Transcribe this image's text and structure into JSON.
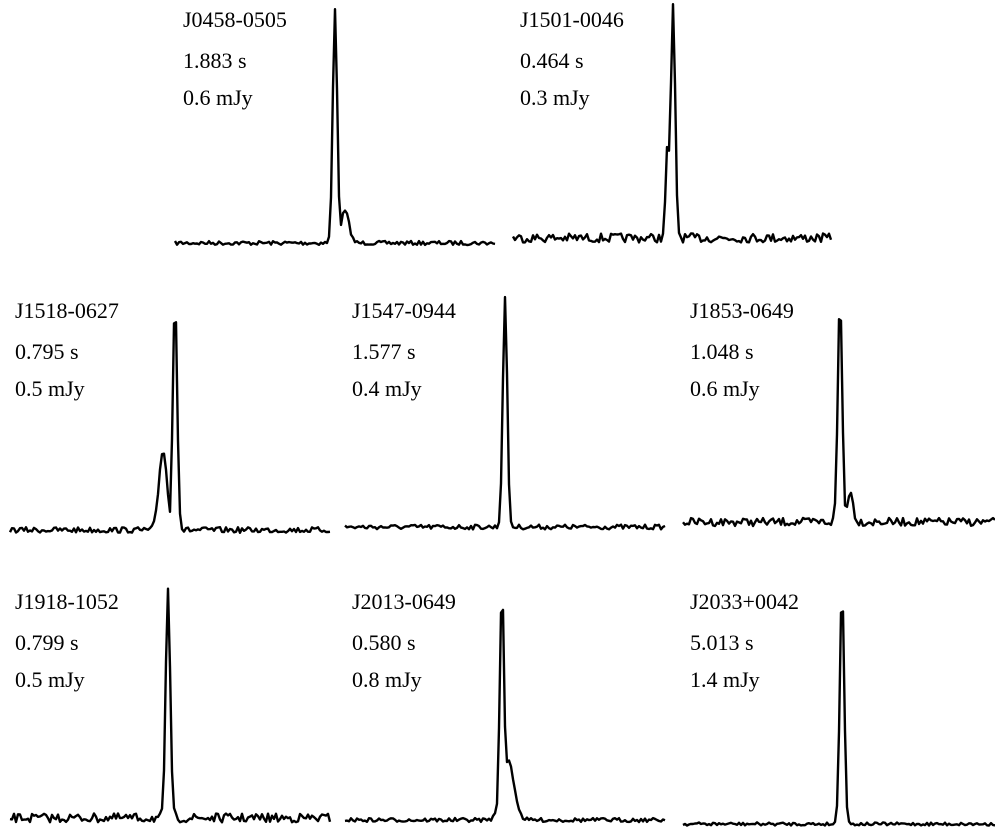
{
  "panels": [
    {
      "name": "J0458-0505",
      "period": "1.883 s",
      "flux": "0.6 mJy"
    },
    {
      "name": "J1501-0046",
      "period": "0.464 s",
      "flux": "0.3 mJy"
    },
    {
      "name": "J1518-0627",
      "period": "0.795 s",
      "flux": "0.5 mJy"
    },
    {
      "name": "J1547-0944",
      "period": "1.577 s",
      "flux": "0.4 mJy"
    },
    {
      "name": "J1853-0649",
      "period": "1.048 s",
      "flux": "0.6 mJy"
    },
    {
      "name": "J1918-1052",
      "period": "0.799 s",
      "flux": "0.5 mJy"
    },
    {
      "name": "J2013-0649",
      "period": "0.580 s",
      "flux": "0.8 mJy"
    },
    {
      "name": "J2033+0042",
      "period": "5.013 s",
      "flux": "1.4 mJy"
    }
  ]
}
